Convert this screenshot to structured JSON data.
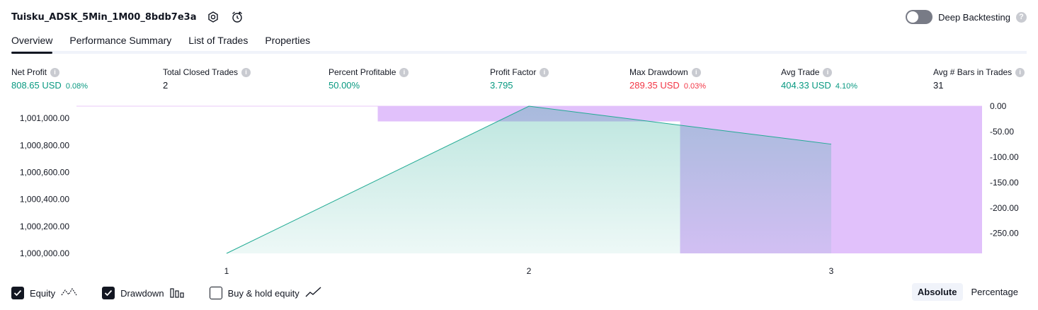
{
  "header": {
    "strategy_name": "Tuisku_ADSK_5Min_1M00_8bdb7e3a",
    "settings_icon": "gear-icon",
    "alert_icon": "alarm-clock-icon"
  },
  "deep_backtesting": {
    "label": "Deep Backtesting",
    "enabled": false,
    "help_icon": "question-icon"
  },
  "tabs": [
    {
      "label": "Overview",
      "active": true
    },
    {
      "label": "Performance Summary",
      "active": false
    },
    {
      "label": "List of Trades",
      "active": false
    },
    {
      "label": "Properties",
      "active": false
    }
  ],
  "metrics": {
    "net_profit": {
      "label": "Net Profit",
      "value": "808.65 USD",
      "pct": "0.08%"
    },
    "total_closed_trades": {
      "label": "Total Closed Trades",
      "value": "2"
    },
    "percent_profitable": {
      "label": "Percent Profitable",
      "value": "50.00%"
    },
    "profit_factor": {
      "label": "Profit Factor",
      "value": "3.795"
    },
    "max_drawdown": {
      "label": "Max Drawdown",
      "value": "289.35 USD",
      "pct": "0.03%"
    },
    "avg_trade": {
      "label": "Avg Trade",
      "value": "404.33 USD",
      "pct": "4.10%"
    },
    "avg_bars": {
      "label": "Avg # Bars in Trades",
      "value": "31"
    }
  },
  "chart_data": {
    "type": "area",
    "x": [
      1,
      2,
      3
    ],
    "x_tick_labels": [
      "1",
      "2",
      "3"
    ],
    "left_axis": {
      "range": [
        1000000,
        1001090
      ],
      "ticks": [
        1000000,
        1000200,
        1000400,
        1000600,
        1000800,
        1001000
      ],
      "tick_labels": [
        "1,000,000.00",
        "1,000,200.00",
        "1,000,400.00",
        "1,000,600.00",
        "1,000,800.00",
        "1,001,000.00"
      ]
    },
    "right_axis": {
      "range": [
        -289.35,
        0
      ],
      "ticks": [
        0,
        -50,
        -100,
        -150,
        -200,
        -250
      ],
      "tick_labels": [
        "0.00",
        "-50.00",
        "-100.00",
        "-150.00",
        "-200.00",
        "-250.00"
      ]
    },
    "series": [
      {
        "values": [
          1000000,
          1001090,
          1000808.65
        ],
        "color": "#22ab94",
        "fill": "#c4e8e0"
      }
    ],
    "drawdown_bars": [
      {
        "x_from": 1.5,
        "x_to": 2.5,
        "drawdown": -30,
        "color": "#e1c1fb"
      },
      {
        "x_from": 2.5,
        "x_to": 3.5,
        "drawdown": -289.35,
        "color": "#e1c1fb"
      }
    ]
  },
  "legend": {
    "equity": {
      "label": "Equity",
      "checked": true
    },
    "drawdown": {
      "label": "Drawdown",
      "checked": true
    },
    "buy_hold": {
      "label": "Buy & hold equity",
      "checked": false
    }
  },
  "modes": [
    {
      "label": "Absolute",
      "active": true
    },
    {
      "label": "Percentage",
      "active": false
    }
  ]
}
